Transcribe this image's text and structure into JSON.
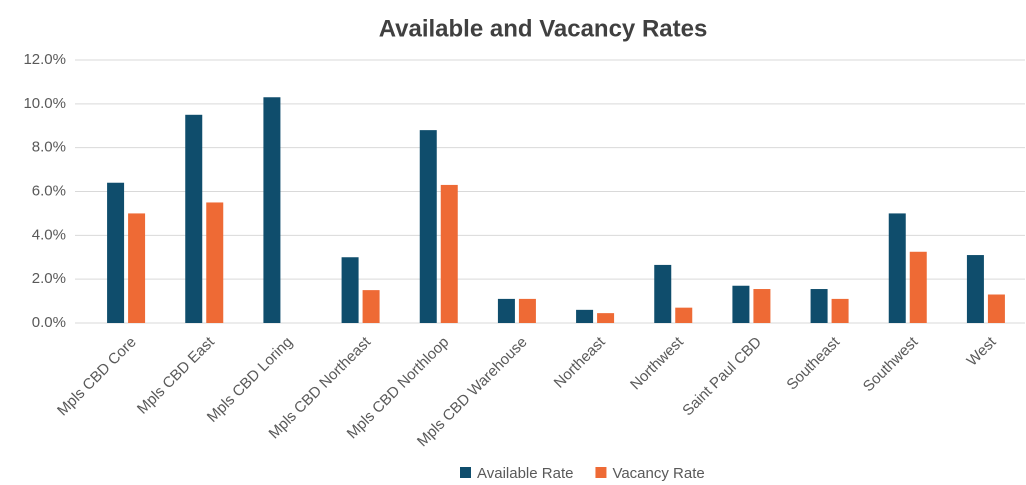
{
  "chart_data": {
    "type": "bar",
    "title": "Available and Vacancy Rates",
    "categories": [
      "Mpls CBD Core",
      "Mpls CBD East",
      "Mpls CBD Loring",
      "Mpls CBD Northeast",
      "Mpls CBD Northloop",
      "Mpls CBD Warehouse",
      "Northeast",
      "Northwest",
      "Saint Paul CBD",
      "Southeast",
      "Southwest",
      "West"
    ],
    "series": [
      {
        "name": "Available Rate",
        "color": "#0f4d6c",
        "values": [
          6.4,
          9.5,
          10.3,
          3.0,
          8.8,
          1.1,
          0.6,
          2.65,
          1.7,
          1.55,
          5.0,
          3.1
        ]
      },
      {
        "name": "Vacancy Rate",
        "color": "#ee6a35",
        "values": [
          5.0,
          5.5,
          0,
          1.5,
          6.3,
          1.1,
          0.45,
          0.7,
          1.55,
          1.1,
          3.25,
          1.3
        ]
      }
    ],
    "ylim": [
      0,
      12
    ],
    "yticks": [
      {
        "value": 0,
        "label": "0.0%"
      },
      {
        "value": 2,
        "label": "2.0%"
      },
      {
        "value": 4,
        "label": "4.0%"
      },
      {
        "value": 6,
        "label": "6.0%"
      },
      {
        "value": 8,
        "label": "8.0%"
      },
      {
        "value": 10,
        "label": "10.0%"
      },
      {
        "value": 12,
        "label": "12.0%"
      }
    ],
    "grid": true,
    "legend": "bottom"
  }
}
